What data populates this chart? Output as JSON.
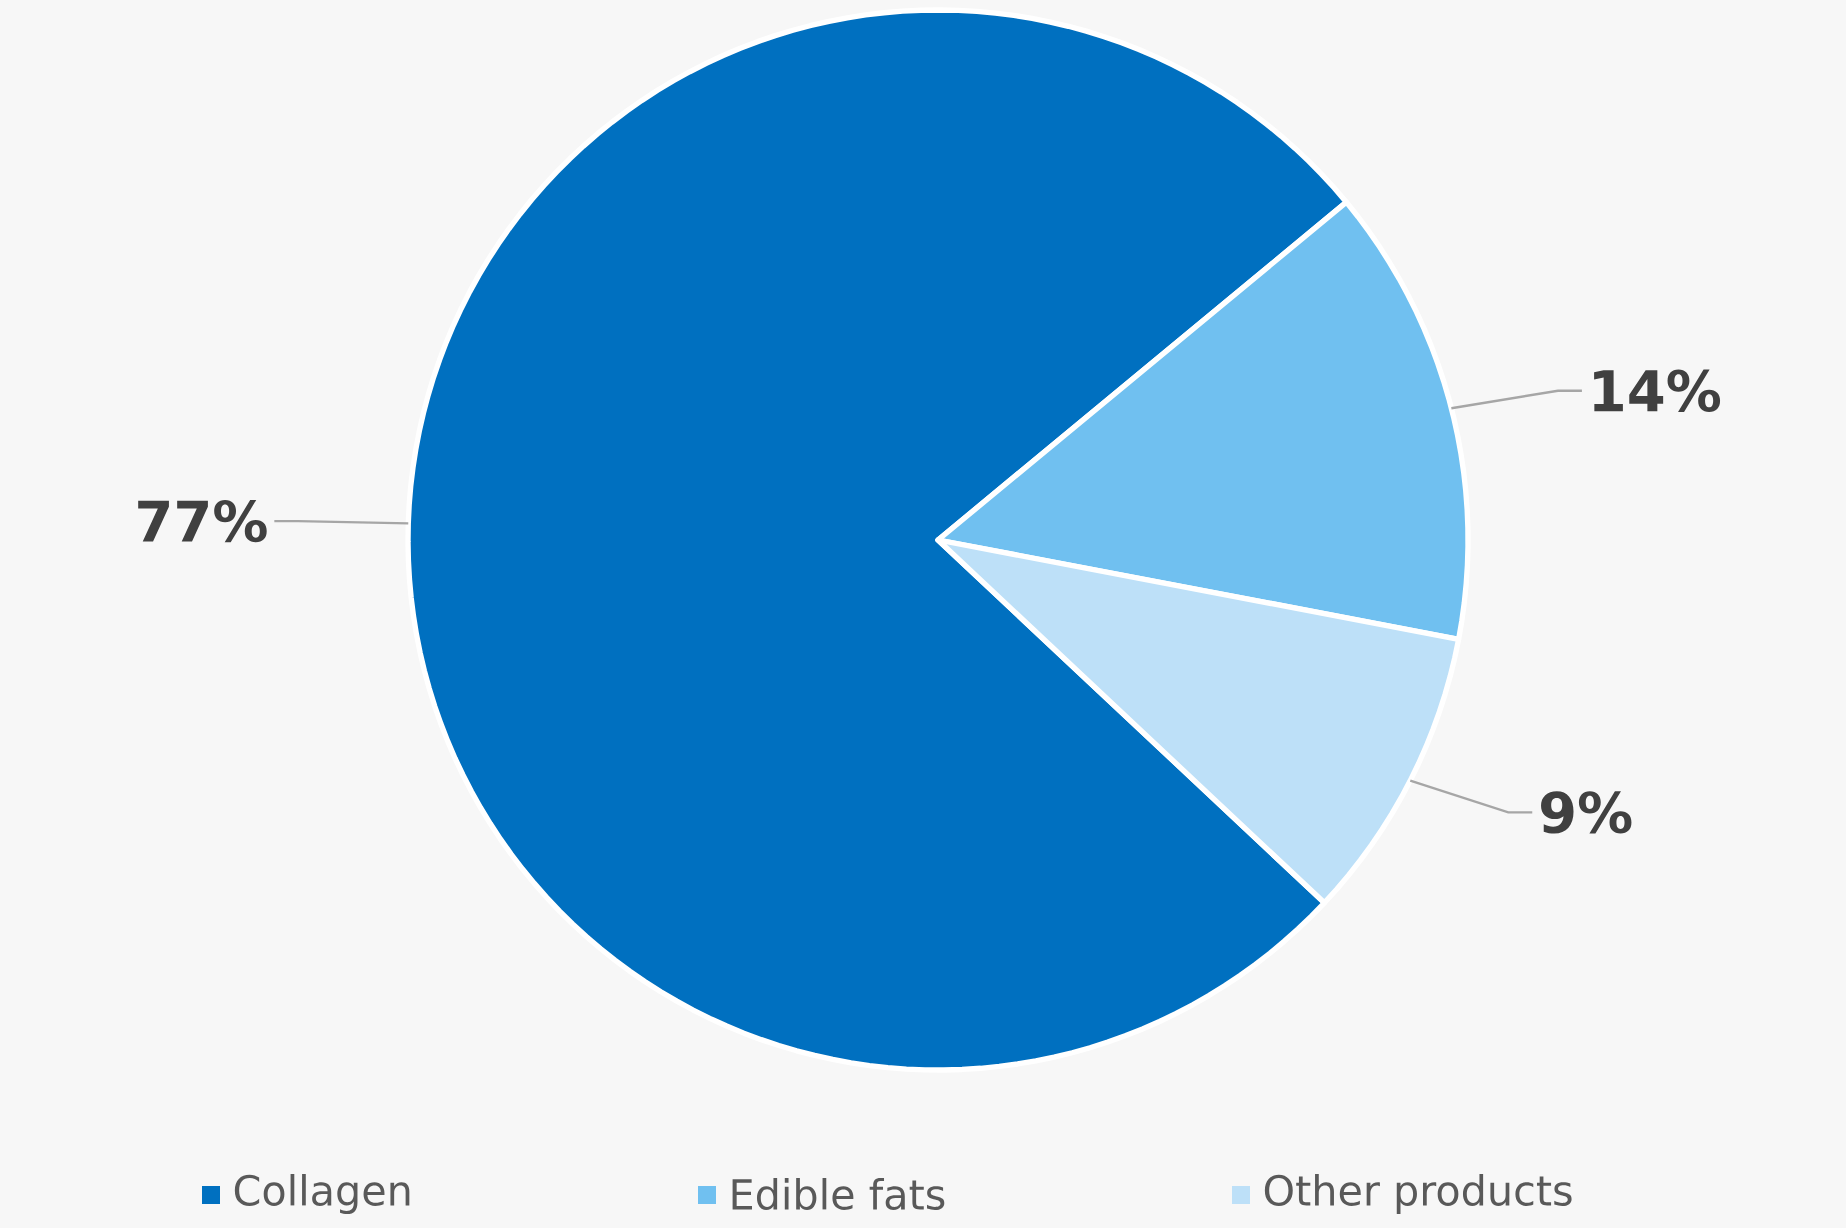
{
  "chart_data": {
    "type": "pie",
    "categories": [
      "Collagen",
      "Edible fats",
      "Other products"
    ],
    "values": [
      77,
      14,
      9
    ],
    "colors": [
      "#0070c0",
      "#70c0f0",
      "#bde0f8"
    ],
    "value_labels": [
      "77%",
      "14%",
      "9%"
    ],
    "legend": "bottom"
  }
}
